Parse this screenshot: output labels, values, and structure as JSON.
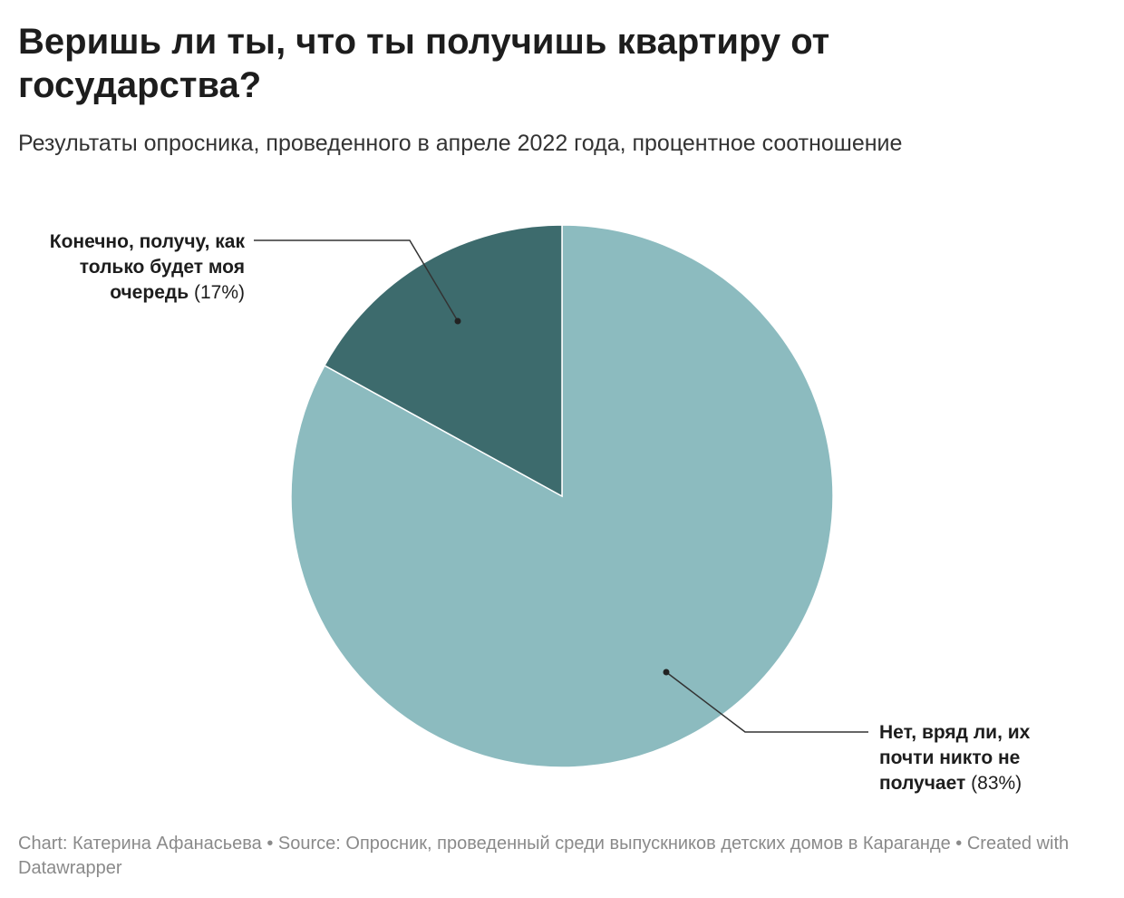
{
  "chart_data": {
    "type": "pie",
    "title": "Веришь ли ты, что ты получишь квартиру от государства?",
    "subtitle": "Результаты опросника, проведенного в апреле 2022 года, процентное соотношение",
    "categories": [
      "Нет, вряд ли, их почти никто не получает",
      "Конечно, получу, как только будет моя очередь"
    ],
    "values": [
      83,
      17
    ],
    "value_labels": [
      "(83%)",
      "(17%)"
    ],
    "colors": [
      "#8cbbbf",
      "#3d6b6d"
    ],
    "footer": "Chart: Катерина Афанасьева • Source: Опросник, проведенный среди выпускников детских домов в Караганде • Created with Datawrapper"
  }
}
